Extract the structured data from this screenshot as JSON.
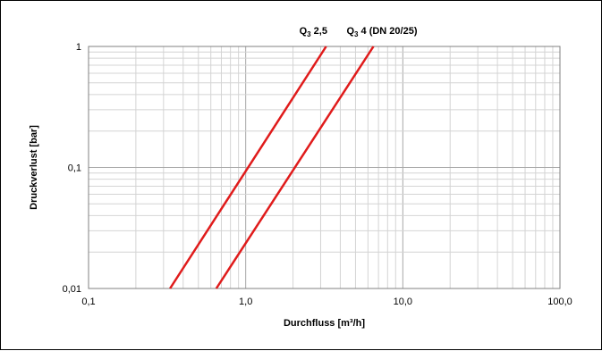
{
  "chart_data": {
    "type": "line",
    "xscale": "log",
    "yscale": "log",
    "xlim": [
      0.1,
      100
    ],
    "ylim": [
      0.01,
      1
    ],
    "xlabel": "Durchfluss [m³/h]",
    "ylabel": "Druckverlust [bar]",
    "x_ticks": [
      {
        "value": 0.1,
        "label": "0,1"
      },
      {
        "value": 1,
        "label": "1,0"
      },
      {
        "value": 10,
        "label": "10,0"
      },
      {
        "value": 100,
        "label": "100,0"
      }
    ],
    "y_ticks": [
      {
        "value": 0.01,
        "label": "0,01"
      },
      {
        "value": 0.1,
        "label": "0,1"
      },
      {
        "value": 1,
        "label": "1"
      }
    ],
    "grid": true,
    "series": [
      {
        "label_main": "Q",
        "label_sub": "3",
        "label_rest": " 2,5",
        "color": "#e01b1b",
        "x": [
          0.33,
          3.25
        ],
        "y": [
          0.01,
          1
        ]
      },
      {
        "label_main": "Q",
        "label_sub": "3",
        "label_rest": " 4 (DN 20/25)",
        "color": "#e01b1b",
        "x": [
          0.65,
          6.5
        ],
        "y": [
          0.01,
          1
        ]
      }
    ]
  }
}
